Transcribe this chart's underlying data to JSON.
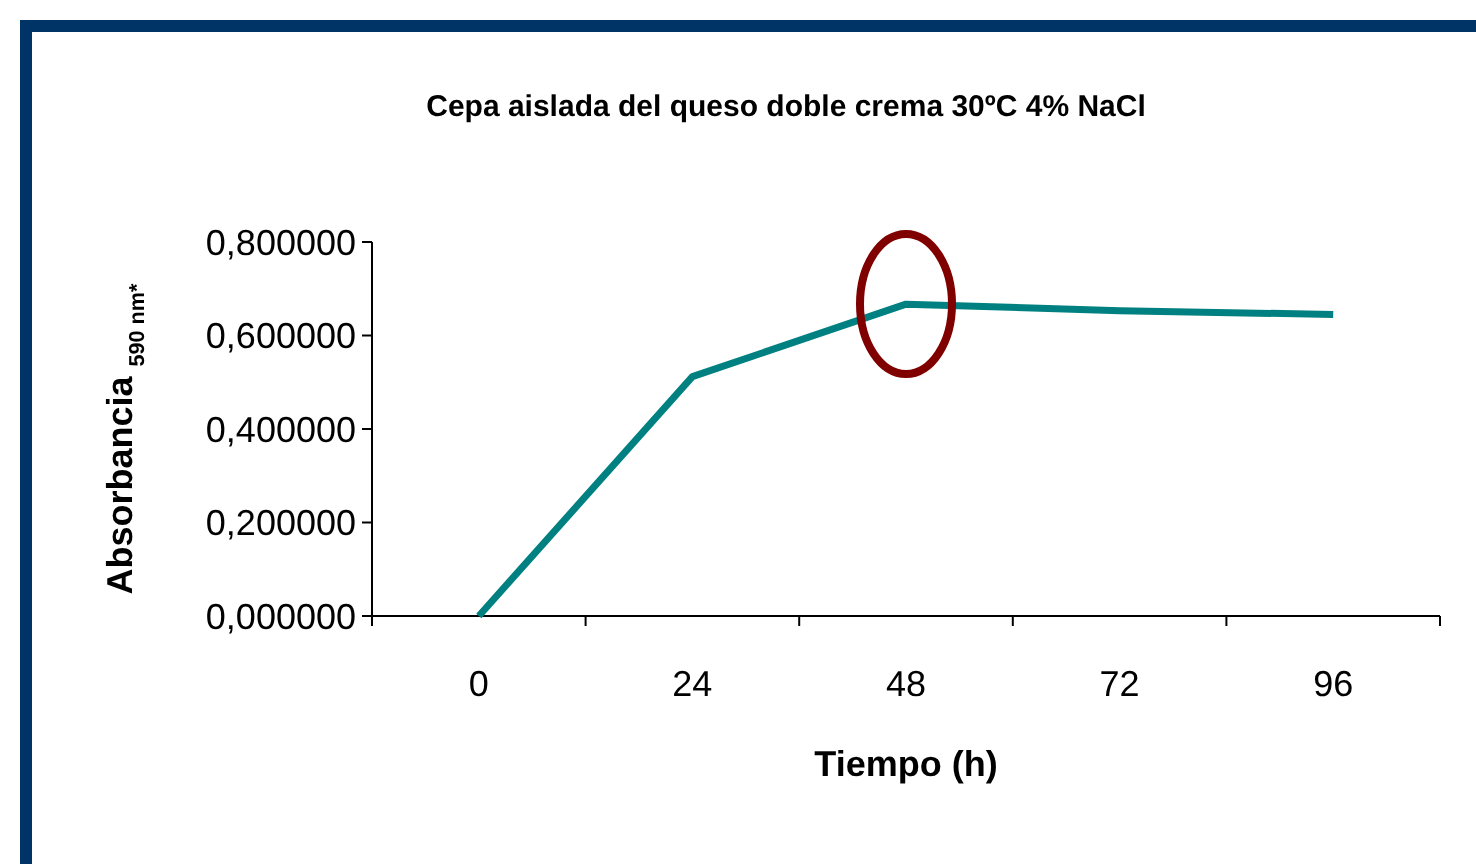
{
  "chart_data": {
    "type": "line",
    "title": "Cepa aislada del queso doble crema 30ºC 4% NaCl",
    "xlabel": "Tiempo (h)",
    "ylabel": "Absorbancia $_{590 nm*}$",
    "categories": [
      "0",
      "24",
      "48",
      "72",
      "96"
    ],
    "series": [
      {
        "color": "#008080",
        "values": [
          0,
          0.512,
          0.667,
          0.653,
          0.645
        ]
      }
    ],
    "ylim": [
      0,
      0.8
    ],
    "yticks": [
      {
        "value": 0,
        "label": "0,000000"
      },
      {
        "value": 0.2,
        "label": "0,200000"
      },
      {
        "value": 0.4,
        "label": "0,400000"
      },
      {
        "value": 0.6,
        "label": "0,600000"
      },
      {
        "value": 0.8,
        "label": "0,800000"
      }
    ],
    "grid": false,
    "marker": "none",
    "line_style": "solid"
  }
}
